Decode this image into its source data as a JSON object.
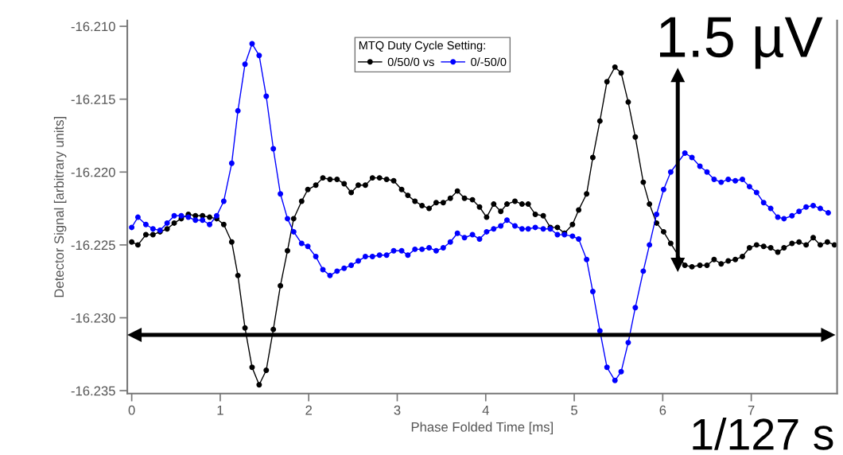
{
  "chart_data": {
    "type": "line",
    "xlabel": "Phase Folded Time [ms]",
    "ylabel": "Detector Signal [arbitrary units]",
    "legend_title": "MTQ Duty Cycle Setting:",
    "legend": "top",
    "marker": "circle",
    "line_style": "solid",
    "grid": false,
    "xlim": [
      -0.05,
      7.97
    ],
    "ylim": [
      -16.2352,
      -16.2096
    ],
    "xticks": [
      0,
      1,
      2,
      3,
      4,
      5,
      6,
      7
    ],
    "yticks": [
      {
        "value": -16.235,
        "label": "-16.235"
      },
      {
        "value": -16.23,
        "label": "-16.230"
      },
      {
        "value": -16.225,
        "label": "-16.225"
      },
      {
        "value": -16.22,
        "label": "-16.220"
      },
      {
        "value": -16.215,
        "label": "-16.215"
      },
      {
        "value": -16.21,
        "label": "-16.210"
      }
    ],
    "annotations": [
      "1.5 µV",
      "1/127 s"
    ],
    "series": [
      {
        "name": "0/50/0 vs",
        "color": "#000000",
        "x": [
          0.0,
          0.07,
          0.16,
          0.24,
          0.32,
          0.4,
          0.48,
          0.56,
          0.64,
          0.72,
          0.8,
          0.88,
          0.96,
          1.04,
          1.13,
          1.2,
          1.28,
          1.36,
          1.44,
          1.52,
          1.6,
          1.68,
          1.76,
          1.83,
          1.92,
          1.99,
          2.08,
          2.16,
          2.24,
          2.32,
          2.4,
          2.48,
          2.56,
          2.64,
          2.72,
          2.8,
          2.88,
          2.96,
          3.05,
          3.12,
          3.2,
          3.28,
          3.36,
          3.44,
          3.52,
          3.6,
          3.68,
          3.76,
          3.85,
          3.93,
          4.01,
          4.09,
          4.17,
          4.24,
          4.33,
          4.41,
          4.48,
          4.56,
          4.65,
          4.73,
          4.81,
          4.89,
          4.98,
          5.05,
          5.14,
          5.21,
          5.29,
          5.37,
          5.46,
          5.53,
          5.61,
          5.69,
          5.78,
          5.85,
          5.93,
          6.01,
          6.09,
          6.25,
          6.33,
          6.42,
          6.5,
          6.58,
          6.66,
          6.74,
          6.82,
          6.9,
          6.98,
          7.06,
          7.14,
          7.22,
          7.3,
          7.37,
          7.46,
          7.54,
          7.62,
          7.7,
          7.78,
          7.86,
          7.94
        ],
        "values": [
          -16.2248,
          -16.225,
          -16.2243,
          -16.2243,
          -16.2241,
          -16.2239,
          -16.2235,
          -16.2232,
          -16.2229,
          -16.223,
          -16.223,
          -16.2231,
          -16.2232,
          -16.2236,
          -16.2248,
          -16.2271,
          -16.2307,
          -16.2334,
          -16.2346,
          -16.2336,
          -16.2308,
          -16.2278,
          -16.2254,
          -16.2232,
          -16.222,
          -16.2212,
          -16.2209,
          -16.2204,
          -16.2205,
          -16.2205,
          -16.2208,
          -16.2214,
          -16.2209,
          -16.2209,
          -16.2204,
          -16.2204,
          -16.2205,
          -16.2206,
          -16.2212,
          -16.2216,
          -16.222,
          -16.2223,
          -16.2225,
          -16.2221,
          -16.2221,
          -16.2218,
          -16.2213,
          -16.2218,
          -16.2219,
          -16.2224,
          -16.2231,
          -16.2222,
          -16.2227,
          -16.2222,
          -16.222,
          -16.2222,
          -16.2222,
          -16.2229,
          -16.223,
          -16.2238,
          -16.2238,
          -16.2242,
          -16.2236,
          -16.2226,
          -16.2215,
          -16.219,
          -16.2165,
          -16.2138,
          -16.2128,
          -16.2132,
          -16.2152,
          -16.2176,
          -16.2207,
          -16.2222,
          -16.2235,
          -16.2241,
          -16.2249,
          -16.2264,
          -16.2265,
          -16.2264,
          -16.2264,
          -16.226,
          -16.2263,
          -16.2261,
          -16.226,
          -16.2258,
          -16.2252,
          -16.225,
          -16.2251,
          -16.2252,
          -16.2255,
          -16.2252,
          -16.2249,
          -16.2248,
          -16.225,
          -16.2245,
          -16.225,
          -16.2248,
          -16.225
        ]
      },
      {
        "name": "0/-50/0",
        "color": "#0000ff",
        "x": [
          0.0,
          0.07,
          0.16,
          0.24,
          0.32,
          0.4,
          0.48,
          0.56,
          0.64,
          0.72,
          0.8,
          0.88,
          0.96,
          1.04,
          1.13,
          1.2,
          1.28,
          1.36,
          1.44,
          1.52,
          1.6,
          1.68,
          1.76,
          1.83,
          1.92,
          1.99,
          2.08,
          2.16,
          2.24,
          2.32,
          2.4,
          2.48,
          2.56,
          2.64,
          2.72,
          2.8,
          2.88,
          2.96,
          3.05,
          3.12,
          3.2,
          3.28,
          3.36,
          3.44,
          3.52,
          3.6,
          3.68,
          3.76,
          3.85,
          3.93,
          4.01,
          4.09,
          4.17,
          4.24,
          4.33,
          4.41,
          4.48,
          4.56,
          4.65,
          4.73,
          4.81,
          4.89,
          4.98,
          5.05,
          5.14,
          5.21,
          5.29,
          5.37,
          5.46,
          5.53,
          5.61,
          5.69,
          5.78,
          5.85,
          5.93,
          6.01,
          6.09,
          6.25,
          6.33,
          6.42,
          6.5,
          6.58,
          6.66,
          6.74,
          6.82,
          6.9,
          6.98,
          7.06,
          7.14,
          7.22,
          7.3,
          7.37,
          7.46,
          7.54,
          7.62,
          7.7,
          7.78,
          7.87
        ],
        "values": [
          -16.2238,
          -16.2231,
          -16.2236,
          -16.2239,
          -16.224,
          -16.2235,
          -16.223,
          -16.223,
          -16.2231,
          -16.2233,
          -16.2233,
          -16.2236,
          -16.223,
          -16.222,
          -16.2194,
          -16.2158,
          -16.2126,
          -16.2112,
          -16.212,
          -16.2148,
          -16.2184,
          -16.2215,
          -16.2232,
          -16.2241,
          -16.2249,
          -16.2251,
          -16.2258,
          -16.2267,
          -16.2271,
          -16.2268,
          -16.2266,
          -16.2264,
          -16.2261,
          -16.2258,
          -16.2258,
          -16.2257,
          -16.2257,
          -16.2254,
          -16.2254,
          -16.2257,
          -16.2253,
          -16.2253,
          -16.2252,
          -16.2254,
          -16.2252,
          -16.2248,
          -16.2242,
          -16.2245,
          -16.2243,
          -16.2246,
          -16.2241,
          -16.2239,
          -16.2237,
          -16.2233,
          -16.2237,
          -16.2239,
          -16.2239,
          -16.2238,
          -16.2239,
          -16.2239,
          -16.2243,
          -16.2243,
          -16.2244,
          -16.2246,
          -16.226,
          -16.2282,
          -16.2309,
          -16.2334,
          -16.2343,
          -16.2337,
          -16.2317,
          -16.2293,
          -16.2268,
          -16.225,
          -16.2229,
          -16.2212,
          -16.22,
          -16.2187,
          -16.219,
          -16.2196,
          -16.22,
          -16.2205,
          -16.2207,
          -16.2205,
          -16.2206,
          -16.2205,
          -16.221,
          -16.2214,
          -16.2221,
          -16.2225,
          -16.2231,
          -16.2232,
          -16.223,
          -16.2227,
          -16.2224,
          -16.2223,
          -16.2225,
          -16.2228
        ]
      }
    ]
  }
}
